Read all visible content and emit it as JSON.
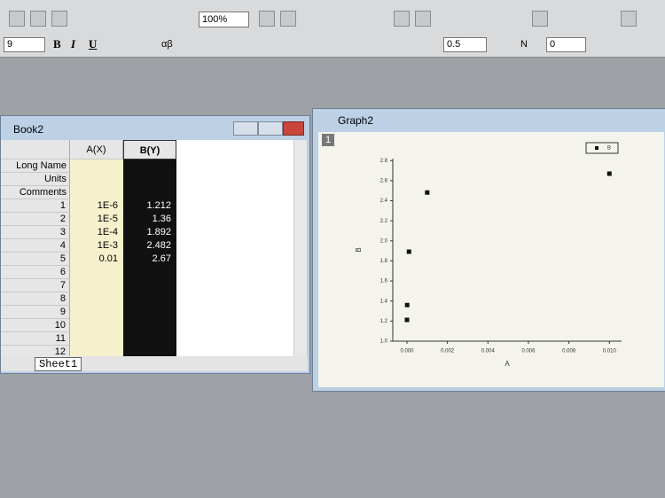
{
  "toolbar": {
    "zoom": "100%",
    "font_size": "9",
    "bold": "B",
    "italic": "I",
    "underline": "U",
    "greek": "αβ",
    "line_width": "0.5",
    "pattern": "N",
    "fill_value": "0"
  },
  "book": {
    "title": "Book2",
    "columns": [
      "A(X)",
      "B(Y)"
    ],
    "row_headers": [
      "Long Name",
      "Units",
      "Comments"
    ],
    "rows": [
      [
        "1",
        "1E-6",
        "1.212"
      ],
      [
        "2",
        "1E-5",
        "1.36"
      ],
      [
        "3",
        "1E-4",
        "1.892"
      ],
      [
        "4",
        "1E-3",
        "2.482"
      ],
      [
        "5",
        "0.01",
        "2.67"
      ],
      [
        "6"
      ],
      [
        "7"
      ],
      [
        "8"
      ],
      [
        "9"
      ],
      [
        "10"
      ],
      [
        "11"
      ],
      [
        "12"
      ]
    ],
    "sheet": "Sheet1"
  },
  "graph": {
    "title": "Graph2",
    "layer": "1",
    "legend": "B",
    "x_label": "A",
    "y_label": "B",
    "x": [
      1e-06,
      1e-05,
      0.0001,
      0.001,
      0.01
    ],
    "y": [
      1.212,
      1.36,
      1.892,
      2.482,
      2.67
    ],
    "xlim": [
      -0.0007,
      0.0106
    ],
    "ylim": [
      1.0,
      2.82
    ],
    "xticks": [
      {
        "value": 0,
        "label": "0.000"
      },
      {
        "value": 0.002,
        "label": "0.002"
      },
      {
        "value": 0.004,
        "label": "0.004"
      },
      {
        "value": 0.006,
        "label": "0.006"
      },
      {
        "value": 0.008,
        "label": "0.008"
      },
      {
        "value": 0.01,
        "label": "0.010"
      }
    ],
    "yticks": [
      {
        "value": 1,
        "label": "1.0"
      },
      1.2,
      1.4,
      1.6,
      1.8,
      {
        "value": 2,
        "label": "2.0"
      },
      2.2,
      2.4,
      2.6,
      2.8
    ]
  }
}
